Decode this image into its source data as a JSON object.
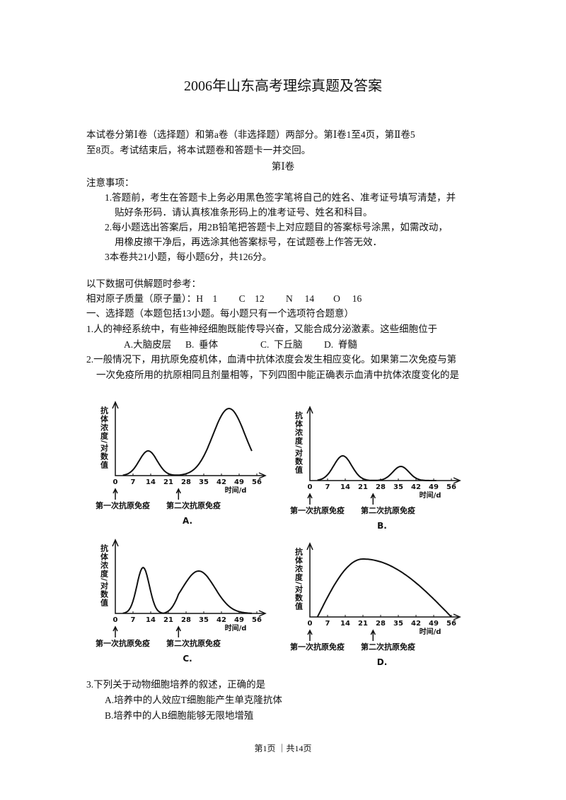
{
  "header": {
    "title": "2006年山东高考理综真题及答案"
  },
  "intro": [
    "本试卷分第Ⅰ卷（选择题）和第a卷（非选择题）两部分。第Ⅰ卷1至4页，第Ⅱ卷5",
    "至8页。考试结束后，将本试题卷和答题卡一并交回。"
  ],
  "section": "第Ⅰ卷",
  "notice": {
    "title": "注意事项：",
    "items": [
      "1.答题前，考生在答题卡上务必用黑色签字笔将自己的姓名、准考证号填写清楚，并",
      "贴好条形码．请认真核准条形码上的准考证号、姓名和科目。",
      "2.每小题选出答案后，用2B铅笔把答题卡上对应题目的答案标号涂黑，如需改动，",
      "用橡皮擦干净后，再选涂其他答案标号，在试题卷上作答无效．",
      "3本卷共21小题，每小题6分，共126分。"
    ]
  },
  "reference": {
    "title": "以下数据可供解题时参考：",
    "masses": "相对原子质量（原子量）：H　1　　 C　12　　 N　 14　　O　 16"
  },
  "part1": "一、选择题（本题包括13小题。每小题只有一个选项符合题意）",
  "questions": [
    {
      "stem": [
        "1.人的神经系统中，有些神经细胞既能传导兴奋，又能合成分泌激素。这些细胞位于"
      ],
      "options": [
        "A.大脑皮层",
        "B.  垂体",
        "C.  下丘脑",
        "D.  脊髓"
      ]
    },
    {
      "stem": [
        "2.一般情况下，用抗原免疫机体，血清中抗体浓度会发生相应变化。如果第二次免疫与第",
        "一次免疫所用的抗原相同且剂量相等，下列四图中能正确表示血清中抗体浓度变化的是"
      ],
      "figures": {
        "y_label": "抗体浓度/对数值",
        "x_label": "时间/d",
        "x_ticks": [
          0,
          7,
          14,
          21,
          28,
          35,
          42,
          49,
          56
        ],
        "first_immunization": "第一次抗原免疫",
        "second_immunization": "第二次抗原免疫",
        "panels": [
          "A.",
          "B.",
          "C.",
          "D."
        ]
      }
    },
    {
      "stem": [
        "3.下列关于动物细胞培养的叙述，正确的是"
      ],
      "options": [
        "A.培养中的人效应T细胞能产生单克隆抗体",
        "B.培养中的人B细胞能够无限地增殖"
      ]
    }
  ],
  "footer": "第1页 ｜共14页"
}
